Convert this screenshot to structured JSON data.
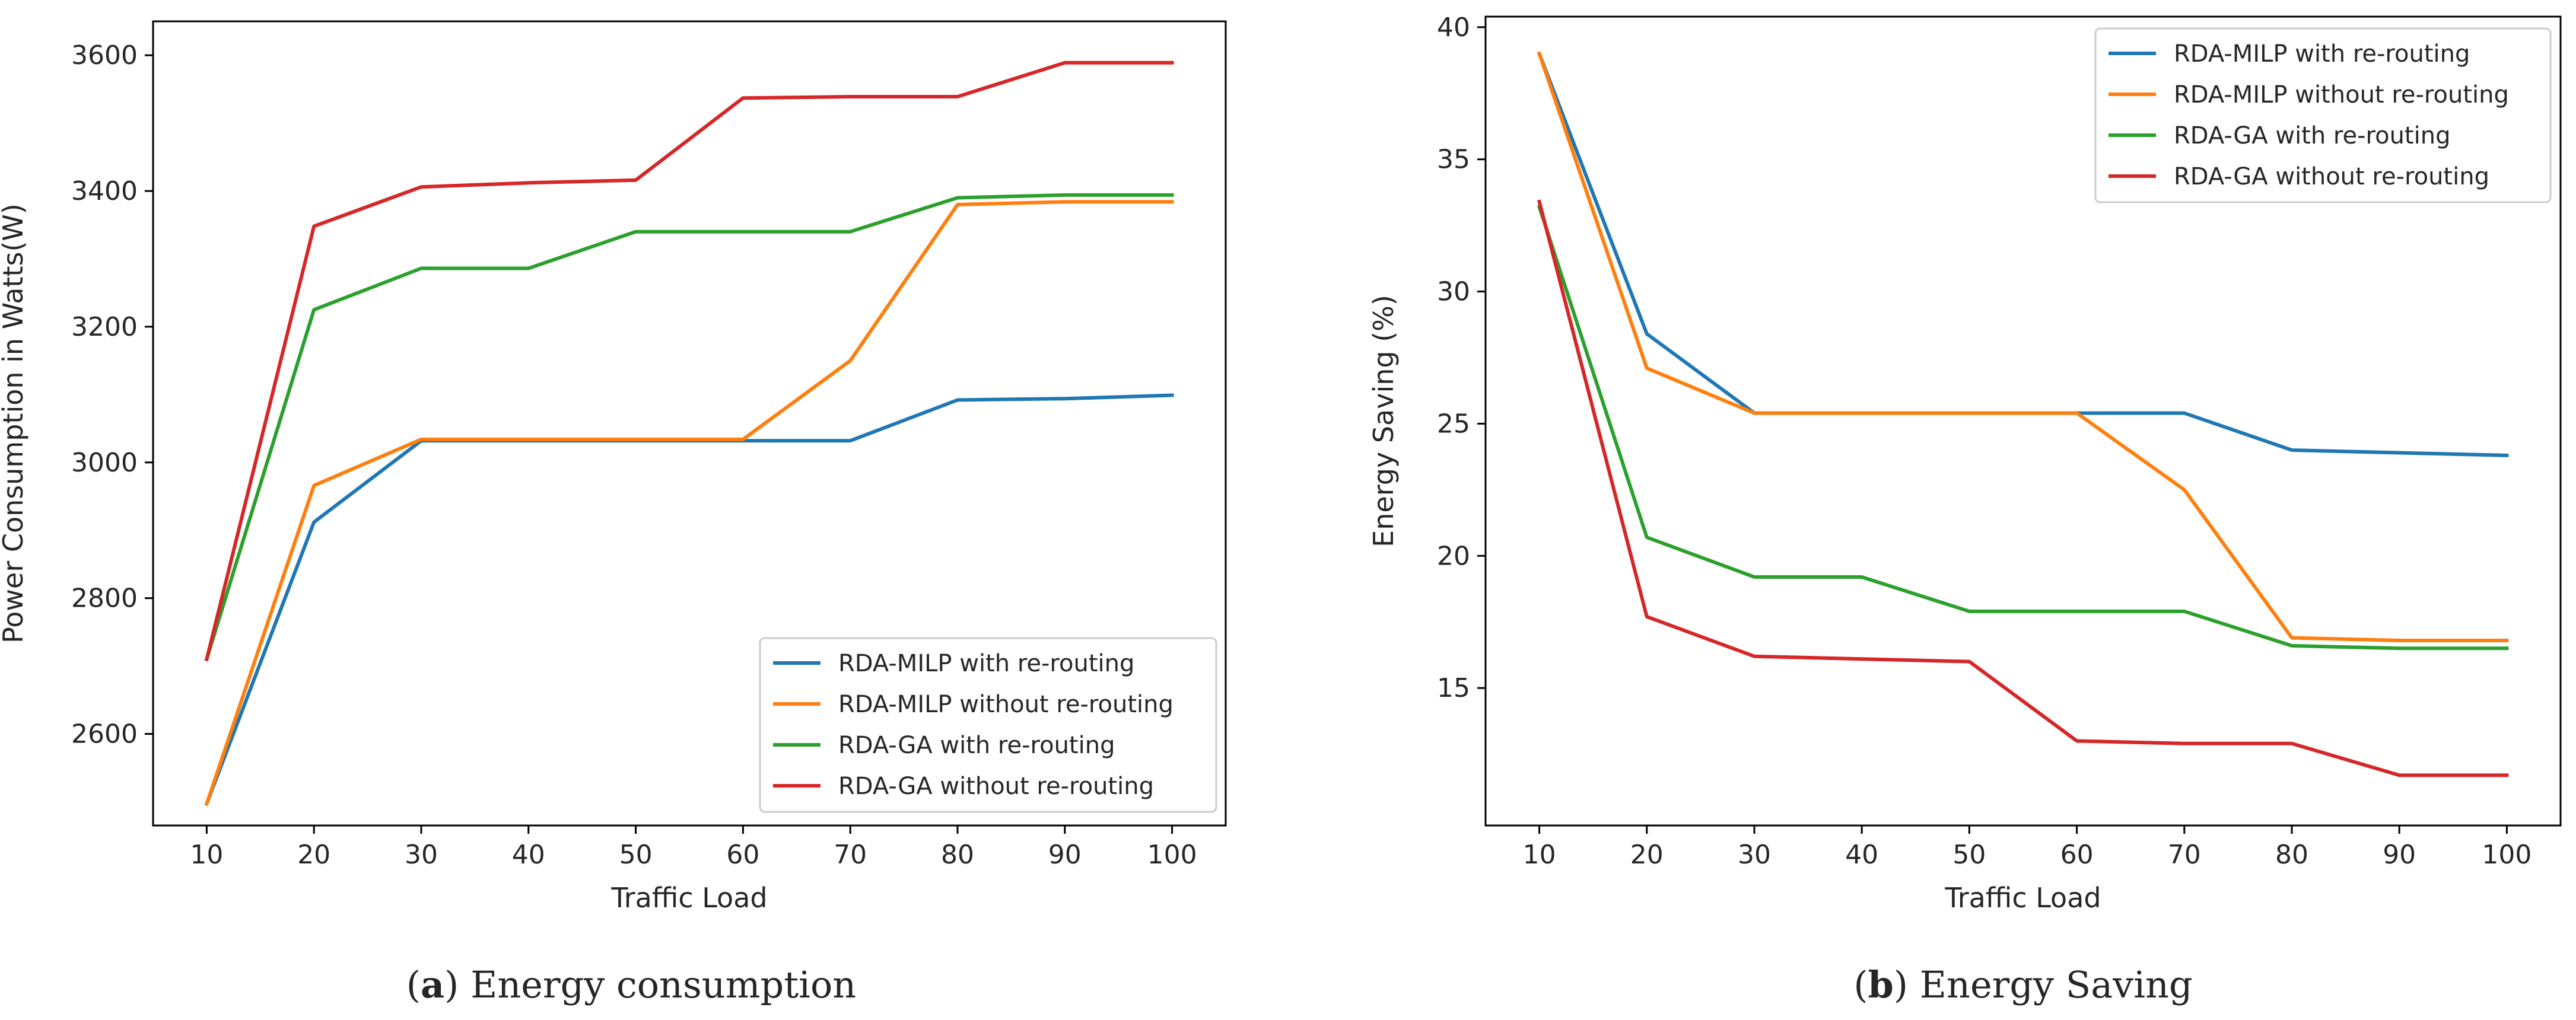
{
  "chart_data": [
    {
      "type": "line",
      "title": "",
      "caption_letter": "a",
      "caption_text": "Energy consumption",
      "xlabel": "Traffic Load",
      "ylabel": "Power Consumption in Watts(W)",
      "x": [
        10,
        20,
        30,
        40,
        50,
        60,
        70,
        80,
        90,
        100
      ],
      "xlim": [
        5,
        105
      ],
      "ylim": [
        2465,
        3650
      ],
      "yticks": [
        2600,
        2800,
        3000,
        3200,
        3400,
        3600
      ],
      "legend_loc": "lower-right",
      "grid": false,
      "series": [
        {
          "name": "RDA-MILP with re-routing",
          "color": "#1f77b4",
          "values": [
            2497,
            2912,
            3032,
            3032,
            3032,
            3032,
            3032,
            3092,
            3094,
            3099
          ]
        },
        {
          "name": "RDA-MILP without re-routing",
          "color": "#ff7f0e",
          "values": [
            2497,
            2966,
            3034,
            3034,
            3034,
            3034,
            3150,
            3380,
            3384,
            3384
          ]
        },
        {
          "name": "RDA-GA with re-routing",
          "color": "#2ca02c",
          "values": [
            2710,
            3225,
            3286,
            3286,
            3340,
            3340,
            3340,
            3390,
            3394,
            3394
          ]
        },
        {
          "name": "RDA-GA without re-routing",
          "color": "#d62728",
          "values": [
            2710,
            3348,
            3406,
            3412,
            3416,
            3537,
            3539,
            3539,
            3589,
            3589
          ]
        }
      ]
    },
    {
      "type": "line",
      "title": "",
      "caption_letter": "b",
      "caption_text": "Energy Saving",
      "xlabel": "Traffic Load",
      "ylabel": "Energy Saving (%)",
      "x": [
        10,
        20,
        30,
        40,
        50,
        60,
        70,
        80,
        90,
        100
      ],
      "xlim": [
        5,
        105
      ],
      "ylim": [
        9.8,
        40.4
      ],
      "yticks": [
        15,
        20,
        25,
        30,
        35,
        40
      ],
      "legend_loc": "upper-right",
      "grid": false,
      "series": [
        {
          "name": "RDA-MILP with re-routing",
          "color": "#1f77b4",
          "values": [
            39.0,
            28.4,
            25.4,
            25.4,
            25.4,
            25.4,
            25.4,
            24.0,
            23.9,
            23.8
          ]
        },
        {
          "name": "RDA-MILP without re-routing",
          "color": "#ff7f0e",
          "values": [
            39.0,
            27.1,
            25.4,
            25.4,
            25.4,
            25.4,
            22.5,
            16.9,
            16.8,
            16.8
          ]
        },
        {
          "name": "RDA-GA with re-routing",
          "color": "#2ca02c",
          "values": [
            33.2,
            20.7,
            19.2,
            19.2,
            17.9,
            17.9,
            17.9,
            16.6,
            16.5,
            16.5
          ]
        },
        {
          "name": "RDA-GA without re-routing",
          "color": "#d62728",
          "values": [
            33.4,
            17.7,
            16.2,
            16.1,
            16.0,
            13.0,
            12.9,
            12.9,
            11.7,
            11.7
          ]
        }
      ]
    }
  ]
}
